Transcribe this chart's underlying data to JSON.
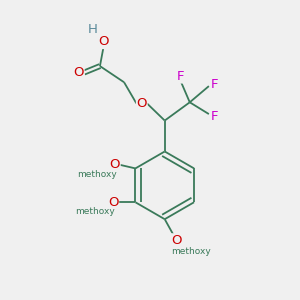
{
  "bg_color": "#f0f0f0",
  "bond_color": "#3a7a5a",
  "o_color": "#cc0000",
  "f_color": "#cc00cc",
  "h_color": "#5a8a9a",
  "line_width": 1.3,
  "font_size": 9.5,
  "fig_size": [
    3.0,
    3.0
  ],
  "dpi": 100,
  "xlim": [
    0,
    10
  ],
  "ylim": [
    0,
    10
  ]
}
